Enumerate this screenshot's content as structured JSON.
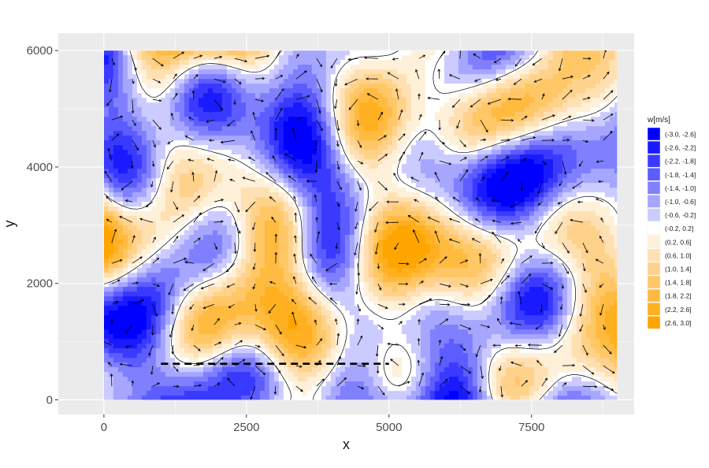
{
  "chart_data": {
    "type": "heatmap",
    "subtype": "filled-contour with velocity vectors",
    "xlabel": "x",
    "ylabel": "y",
    "xlim": [
      -800,
      9300
    ],
    "ylim": [
      -250,
      6300
    ],
    "data_extent": {
      "x": [
        0,
        9000
      ],
      "y": [
        0,
        6000
      ]
    },
    "x_ticks": [
      0,
      2500,
      5000,
      7500
    ],
    "x_tick_labels": [
      "0",
      "2500",
      "5000",
      "7500"
    ],
    "y_ticks": [
      0,
      2000,
      4000,
      6000
    ],
    "y_tick_labels": [
      "0",
      "2000",
      "4000",
      "6000"
    ],
    "grid": true,
    "legend": {
      "title": "w[m/s]",
      "placement": "right",
      "bins": [
        {
          "label": "(-3.0, -2.6]",
          "color": "#0000ff"
        },
        {
          "label": "(-2.6, -2.2]",
          "color": "#1a1aff"
        },
        {
          "label": "(-2.2, -1.8]",
          "color": "#3a3aff"
        },
        {
          "label": "(-1.8, -1.4]",
          "color": "#5c5cff"
        },
        {
          "label": "(-1.4, -1.0]",
          "color": "#8080ff"
        },
        {
          "label": "(-1.0, -0.6]",
          "color": "#a6a6ff"
        },
        {
          "label": "(-0.6, -0.2]",
          "color": "#cbcbff"
        },
        {
          "label": "(-0.2, 0.2]",
          "color": "#ffffff"
        },
        {
          "label": "(0.2, 0.6]",
          "color": "#fff0d9"
        },
        {
          "label": "(0.6, 1.0]",
          "color": "#ffe0b3"
        },
        {
          "label": "(1.0, 1.4]",
          "color": "#ffd28c"
        },
        {
          "label": "(1.4, 1.8]",
          "color": "#ffc766"
        },
        {
          "label": "(1.8, 2.2]",
          "color": "#ffbb40"
        },
        {
          "label": "(2.2, 2.6]",
          "color": "#ffb020"
        },
        {
          "label": "(2.6, 3.0]",
          "color": "#ffa500"
        }
      ]
    },
    "reference_line": {
      "style": "dashed",
      "color": "#000000",
      "x": [
        1000,
        5000
      ],
      "y": [
        620,
        620
      ]
    },
    "colors": {
      "panel_background": "#ebebeb",
      "grid": "#ffffff",
      "negative": "#0000ff",
      "positive": "#ffa500"
    }
  }
}
